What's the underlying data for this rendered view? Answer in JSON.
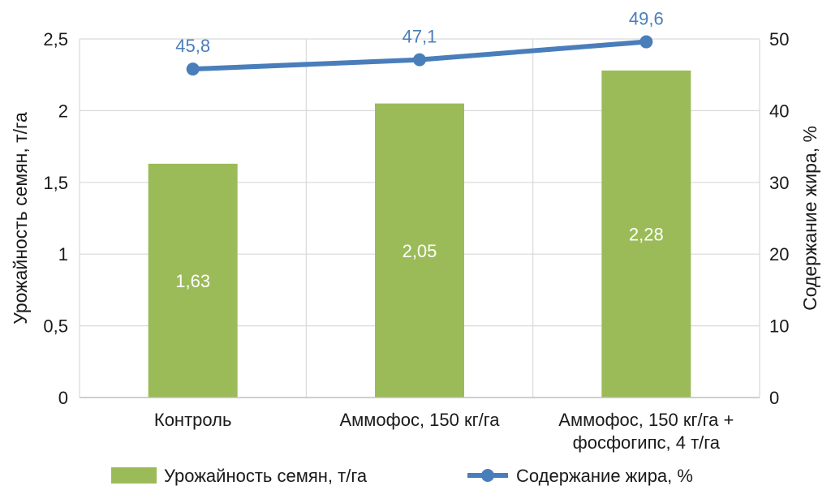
{
  "chart_data": {
    "type": "bar",
    "categories": [
      "Контроль",
      "Аммофос, 150 кг/га",
      "Аммофос, 150 кг/га + фосфогипс, 4 т/га"
    ],
    "category_lines": [
      [
        "Контроль"
      ],
      [
        "Аммофос, 150 кг/га"
      ],
      [
        "Аммофос, 150 кг/га +",
        "фосфогипс, 4 т/га"
      ]
    ],
    "series": [
      {
        "name": "Урожайность семян, т/га",
        "type": "bar",
        "axis": "left",
        "values": [
          1.63,
          2.05,
          2.28
        ],
        "labels": [
          "1,63",
          "2,05",
          "2,28"
        ],
        "color": "#9bbb59"
      },
      {
        "name": "Содержание жира, %",
        "type": "line",
        "axis": "right",
        "values": [
          45.8,
          47.1,
          49.6
        ],
        "labels": [
          "45,8",
          "47,1",
          "49,6"
        ],
        "color": "#4a7ebb"
      }
    ],
    "ylabel": "Урожайность семян, т/га",
    "y2label": "Содержание жира, %",
    "ylim": [
      0,
      2.5
    ],
    "y2lim": [
      0,
      50
    ],
    "yticks": [
      0,
      0.5,
      1,
      1.5,
      2,
      2.5
    ],
    "ytick_labels": [
      "0",
      "0,5",
      "1",
      "1,5",
      "2",
      "2,5"
    ],
    "y2ticks": [
      0,
      10,
      20,
      30,
      40,
      50
    ],
    "y2tick_labels": [
      "0",
      "10",
      "20",
      "30",
      "40",
      "50"
    ],
    "grid": true,
    "legend_position": "bottom"
  }
}
